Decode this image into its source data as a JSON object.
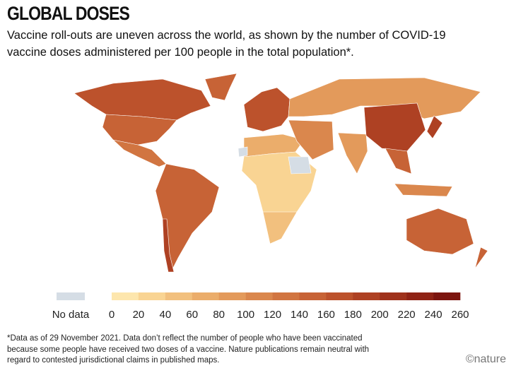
{
  "header": {
    "title": "GLOBAL DOSES",
    "subtitle": "Vaccine roll-outs are uneven across the world, as shown by the number of COVID-19 vaccine doses administered per 100 people in the total population*."
  },
  "legend": {
    "no_data_label": "No data",
    "no_data_color": "#d5dde5",
    "ticks": [
      0,
      20,
      40,
      60,
      80,
      100,
      120,
      140,
      160,
      180,
      200,
      220,
      240,
      260
    ],
    "colors": [
      "#fde6ad",
      "#f9d493",
      "#f2c07e",
      "#ebad6b",
      "#e39a5b",
      "#da874d",
      "#d17541",
      "#c76336",
      "#bc522c",
      "#ae4123",
      "#9f321c",
      "#8f2315",
      "#7c150f"
    ]
  },
  "footnote": "*Data as of 29 November 2021. Data don’t reflect the number of people who have been vaccinated because some people have received two doses of a vaccine. Nature publications remain neutral with regard to contested jurisdictional claims in published maps.",
  "credit": "©nature"
}
